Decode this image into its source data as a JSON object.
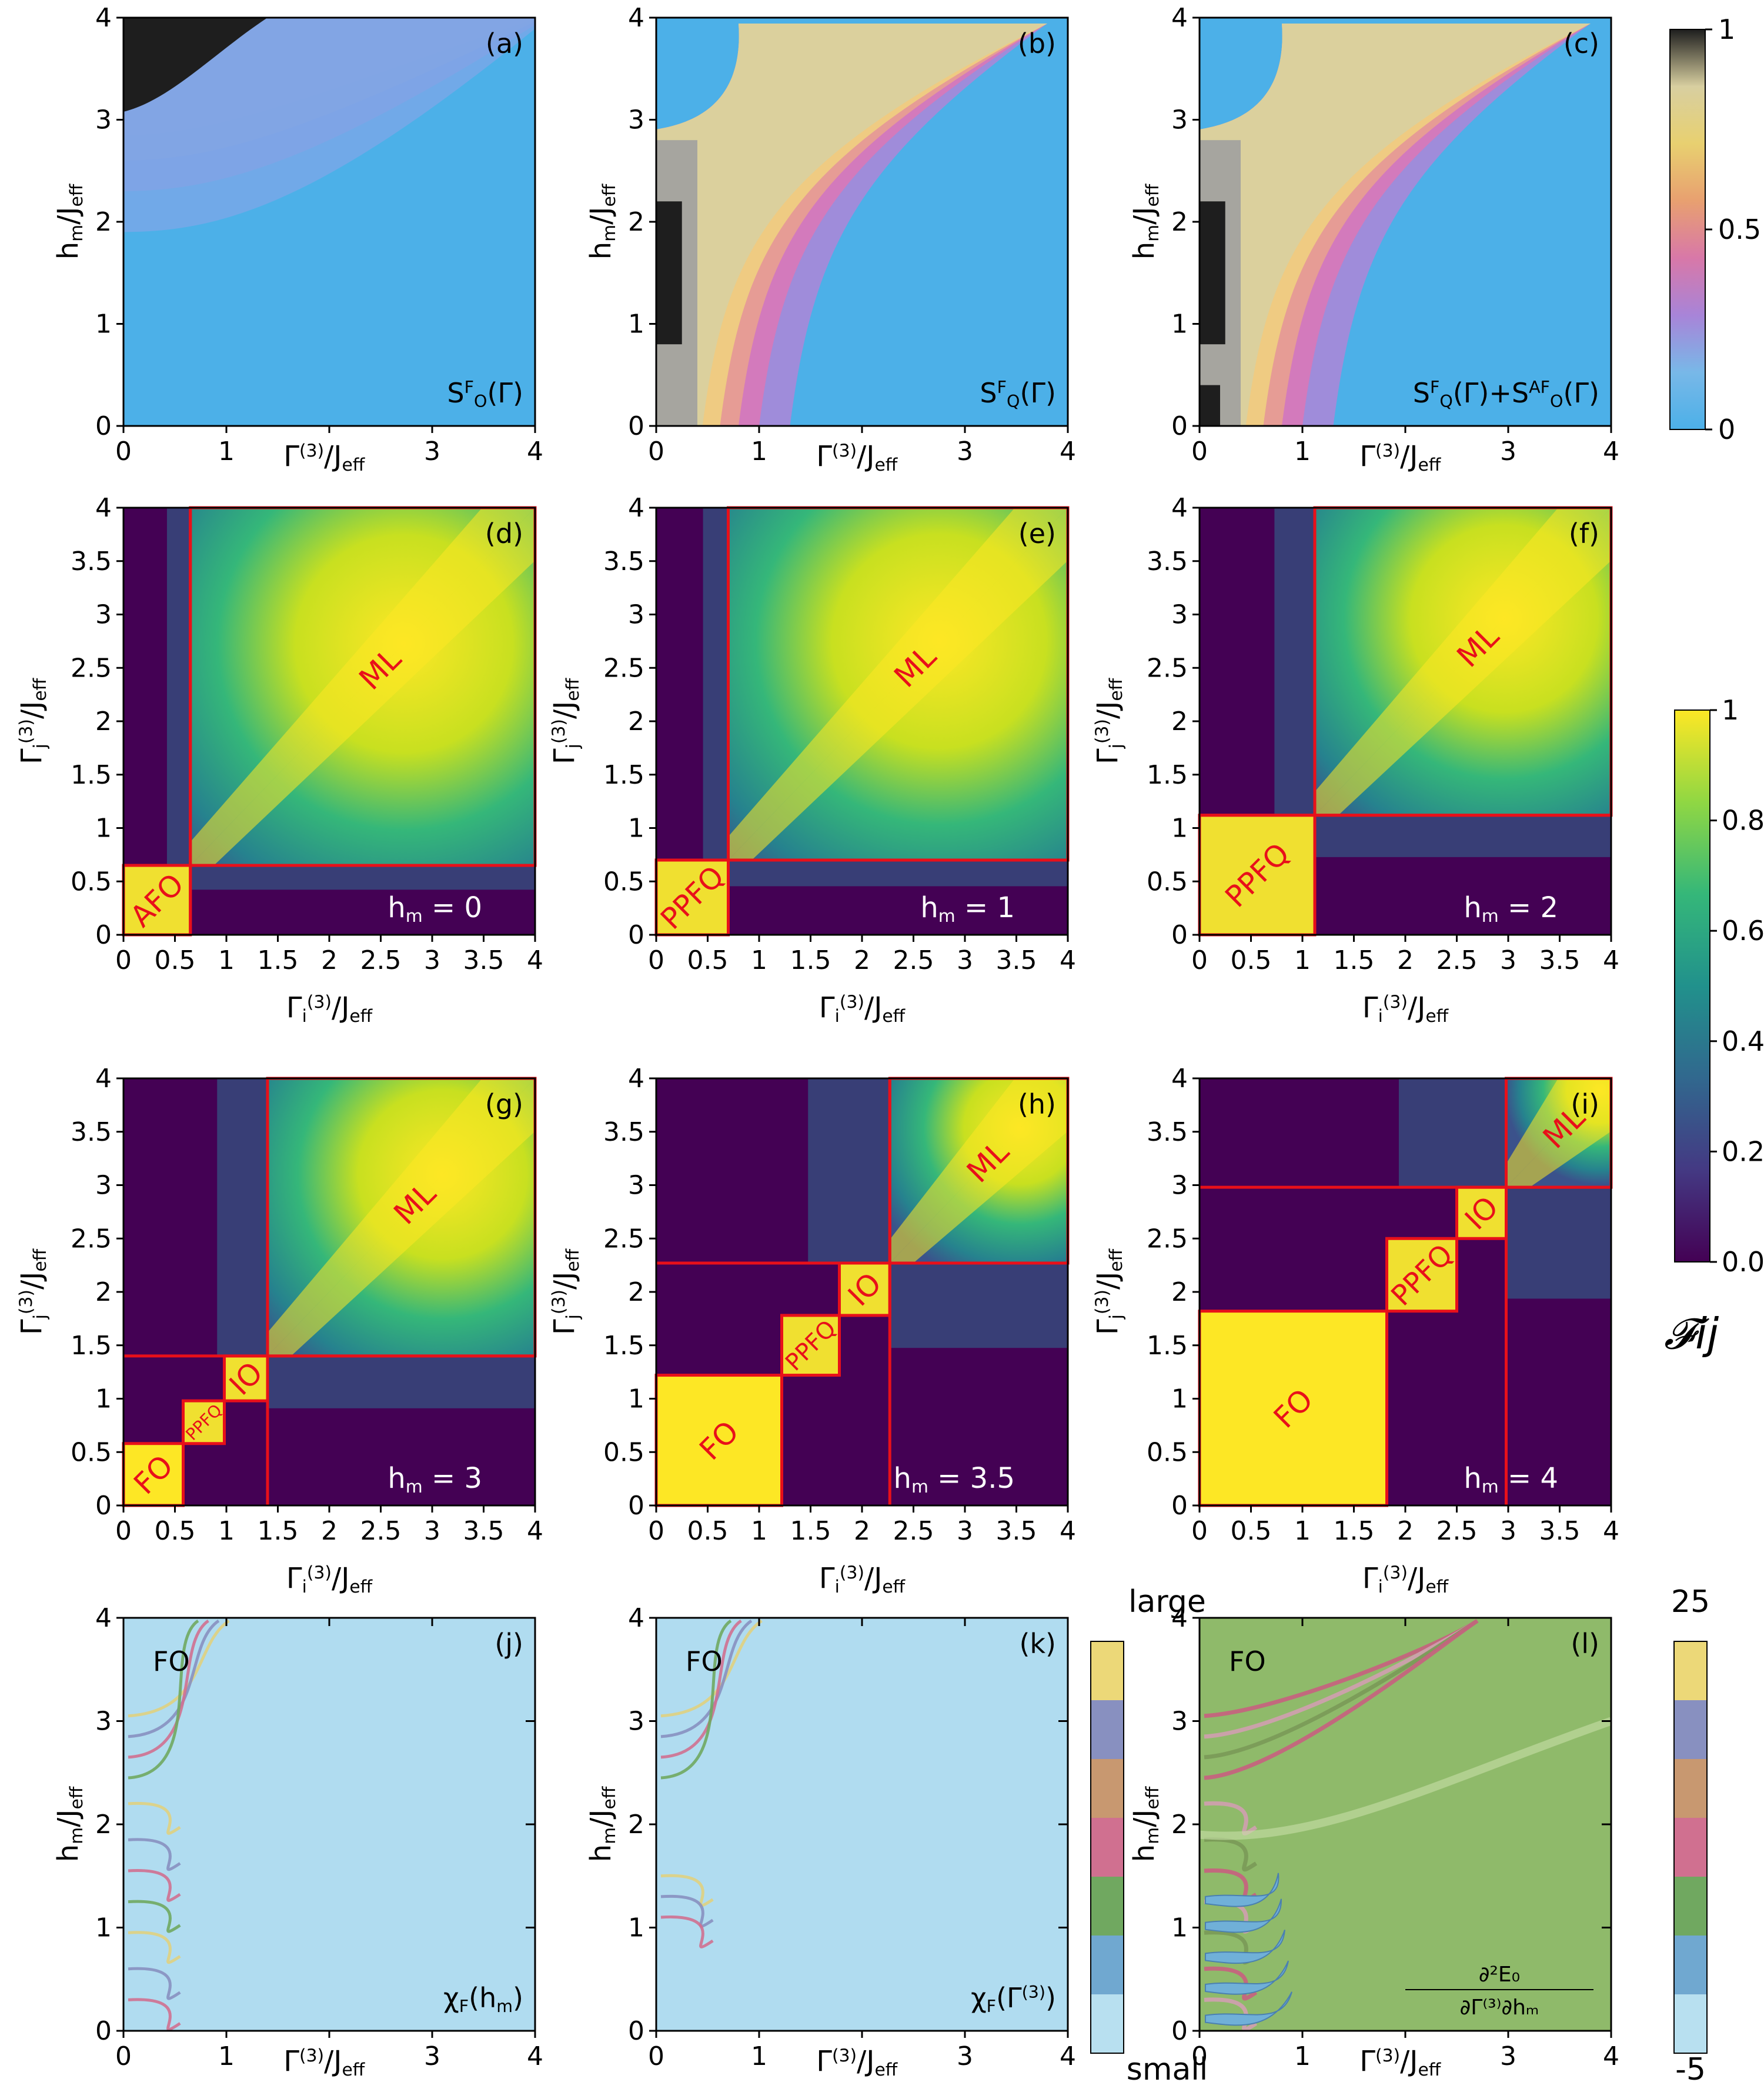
{
  "chart_data": [
    {
      "id": "a",
      "type": "heatmap",
      "panel_label": "(a)",
      "xlim": [
        0,
        4
      ],
      "ylim": [
        0,
        4
      ],
      "xticks": [
        "0",
        "1",
        "",
        "3",
        "4"
      ],
      "yticks": [
        "0",
        "1",
        "2",
        "3",
        "4"
      ],
      "xlabel_base": "Γ",
      "xlabel_sup": "(3)",
      "xlabel_mid": "/J",
      "xlabel_sub": "eff",
      "ylabel_base": "h",
      "ylabel_sub": "m",
      "ylabel_mid": "/J",
      "ylabel_sub2": "eff",
      "annotation": "S_O^F(Γ)",
      "annotation_parts": [
        {
          "t": "S"
        },
        {
          "t": "F",
          "sup": true
        },
        {
          "t": "O",
          "sub": true
        },
        {
          "t": "(Γ)"
        }
      ]
    },
    {
      "id": "b",
      "type": "heatmap",
      "panel_label": "(b)",
      "xlim": [
        0,
        4
      ],
      "ylim": [
        0,
        4
      ],
      "xticks": [
        "0",
        "1",
        "",
        "3",
        "4"
      ],
      "yticks": [
        "0",
        "1",
        "2",
        "3",
        "4"
      ],
      "xlabel_base": "Γ",
      "xlabel_sup": "(3)",
      "xlabel_mid": "/J",
      "xlabel_sub": "eff",
      "ylabel_base": "h",
      "ylabel_sub": "m",
      "ylabel_mid": "/J",
      "ylabel_sub2": "eff",
      "annotation": "S_Q^F(Γ)",
      "annotation_parts": [
        {
          "t": "S"
        },
        {
          "t": "F",
          "sup": true
        },
        {
          "t": "Q",
          "sub": true
        },
        {
          "t": "(Γ)"
        }
      ]
    },
    {
      "id": "c",
      "type": "heatmap",
      "panel_label": "(c)",
      "xlim": [
        0,
        4
      ],
      "ylim": [
        0,
        4
      ],
      "xticks": [
        "0",
        "1",
        "",
        "3",
        "4"
      ],
      "yticks": [
        "0",
        "1",
        "2",
        "3",
        "4"
      ],
      "xlabel_base": "Γ",
      "xlabel_sup": "(3)",
      "xlabel_mid": "/J",
      "xlabel_sub": "eff",
      "ylabel_base": "h",
      "ylabel_sub": "m",
      "ylabel_mid": "/J",
      "ylabel_sub2": "eff",
      "annotation": "S_Q^F(Γ)+S_O^AF(Γ)",
      "annotation_parts": [
        {
          "t": "S"
        },
        {
          "t": "F",
          "sup": true
        },
        {
          "t": "Q",
          "sub": true
        },
        {
          "t": "(Γ)+S"
        },
        {
          "t": "AF",
          "sup": true
        },
        {
          "t": "O",
          "sub": true
        },
        {
          "t": "(Γ)"
        }
      ]
    },
    {
      "id": "d",
      "type": "heatmap",
      "panel_label": "(d)",
      "hm_label": "h_m = 0",
      "hm_parts": [
        {
          "t": "h"
        },
        {
          "t": "m",
          "sub": true
        },
        {
          "t": " = 0"
        }
      ],
      "xlim": [
        0,
        4
      ],
      "ylim": [
        0,
        4
      ],
      "ticks": [
        "0",
        "0.5",
        "1",
        "1.5",
        "2",
        "2.5",
        "3",
        "3.5",
        "4"
      ],
      "xlabel_base": "Γ",
      "xlabel_sub": "i",
      "xlabel_sup": "(3)",
      "xlabel_mid": "/J",
      "xlabel_sub2": "eff",
      "ylabel_base": "Γ",
      "ylabel_sub": "j",
      "ylabel_sup": "(3)",
      "ylabel_mid": "/J",
      "ylabel_sub2": "eff",
      "regions": [
        {
          "label": "AFO",
          "x0": 0,
          "x1": 0.65
        },
        {
          "label": "ML",
          "x0": 0.65,
          "x1": 4
        }
      ]
    },
    {
      "id": "e",
      "type": "heatmap",
      "panel_label": "(e)",
      "hm_label": "h_m = 1",
      "hm_parts": [
        {
          "t": "h"
        },
        {
          "t": "m",
          "sub": true
        },
        {
          "t": " = 1"
        }
      ],
      "xlim": [
        0,
        4
      ],
      "ylim": [
        0,
        4
      ],
      "ticks": [
        "0",
        "0.5",
        "1",
        "1.5",
        "2",
        "2.5",
        "3",
        "3.5",
        "4"
      ],
      "xlabel_base": "Γ",
      "xlabel_sub": "i",
      "xlabel_sup": "(3)",
      "xlabel_mid": "/J",
      "xlabel_sub2": "eff",
      "ylabel_base": "Γ",
      "ylabel_sub": "j",
      "ylabel_sup": "(3)",
      "ylabel_mid": "/J",
      "ylabel_sub2": "eff",
      "regions": [
        {
          "label": "PPFQ",
          "x0": 0,
          "x1": 0.7
        },
        {
          "label": "ML",
          "x0": 0.7,
          "x1": 4
        }
      ]
    },
    {
      "id": "f",
      "type": "heatmap",
      "panel_label": "(f)",
      "hm_label": "h_m = 2",
      "hm_parts": [
        {
          "t": "h"
        },
        {
          "t": "m",
          "sub": true
        },
        {
          "t": " = 2"
        }
      ],
      "xlim": [
        0,
        4
      ],
      "ylim": [
        0,
        4
      ],
      "ticks": [
        "0",
        "0.5",
        "1",
        "1.5",
        "2",
        "2.5",
        "3",
        "3.5",
        "4"
      ],
      "xlabel_base": "Γ",
      "xlabel_sub": "i",
      "xlabel_sup": "(3)",
      "xlabel_mid": "/J",
      "xlabel_sub2": "eff",
      "ylabel_base": "Γ",
      "ylabel_sub": "j",
      "ylabel_sup": "(3)",
      "ylabel_mid": "/J",
      "ylabel_sub2": "eff",
      "regions": [
        {
          "label": "PPFQ",
          "x0": 0,
          "x1": 1.12
        },
        {
          "label": "ML",
          "x0": 1.12,
          "x1": 4
        }
      ]
    },
    {
      "id": "g",
      "type": "heatmap",
      "panel_label": "(g)",
      "hm_label": "h_m = 3",
      "hm_parts": [
        {
          "t": "h"
        },
        {
          "t": "m",
          "sub": true
        },
        {
          "t": " = 3"
        }
      ],
      "xlim": [
        0,
        4
      ],
      "ylim": [
        0,
        4
      ],
      "ticks": [
        "0",
        "0.5",
        "1",
        "1.5",
        "2",
        "2.5",
        "3",
        "3.5",
        "4"
      ],
      "xlabel_base": "Γ",
      "xlabel_sub": "i",
      "xlabel_sup": "(3)",
      "xlabel_mid": "/J",
      "xlabel_sub2": "eff",
      "ylabel_base": "Γ",
      "ylabel_sub": "j",
      "ylabel_sup": "(3)",
      "ylabel_mid": "/J",
      "ylabel_sub2": "eff",
      "regions": [
        {
          "label": "FO",
          "x0": 0,
          "x1": 0.58
        },
        {
          "label": "PPFQ",
          "x0": 0.58,
          "x1": 0.98
        },
        {
          "label": "IO",
          "x0": 0.98,
          "x1": 1.4
        },
        {
          "label": "ML",
          "x0": 1.4,
          "x1": 4
        }
      ]
    },
    {
      "id": "h",
      "type": "heatmap",
      "panel_label": "(h)",
      "hm_label": "h_m = 3.5",
      "hm_parts": [
        {
          "t": "h"
        },
        {
          "t": "m",
          "sub": true
        },
        {
          "t": " = 3.5"
        }
      ],
      "xlim": [
        0,
        4
      ],
      "ylim": [
        0,
        4
      ],
      "ticks": [
        "0",
        "0.5",
        "1",
        "1.5",
        "2",
        "2.5",
        "3",
        "3.5",
        "4"
      ],
      "xlabel_base": "Γ",
      "xlabel_sub": "i",
      "xlabel_sup": "(3)",
      "xlabel_mid": "/J",
      "xlabel_sub2": "eff",
      "ylabel_base": "Γ",
      "ylabel_sub": "j",
      "ylabel_sup": "(3)",
      "ylabel_mid": "/J",
      "ylabel_sub2": "eff",
      "regions": [
        {
          "label": "FO",
          "x0": 0,
          "x1": 1.22
        },
        {
          "label": "PPFQ",
          "x0": 1.22,
          "x1": 1.78
        },
        {
          "label": "IO",
          "x0": 1.78,
          "x1": 2.27
        },
        {
          "label": "ML",
          "x0": 2.27,
          "x1": 4
        }
      ]
    },
    {
      "id": "i",
      "type": "heatmap",
      "panel_label": "(i)",
      "hm_label": "h_m = 4",
      "hm_parts": [
        {
          "t": "h"
        },
        {
          "t": "m",
          "sub": true
        },
        {
          "t": " = 4"
        }
      ],
      "xlim": [
        0,
        4
      ],
      "ylim": [
        0,
        4
      ],
      "ticks": [
        "0",
        "0.5",
        "1",
        "1.5",
        "2",
        "2.5",
        "3",
        "3.5",
        "4"
      ],
      "xlabel_base": "Γ",
      "xlabel_sub": "i",
      "xlabel_sup": "(3)",
      "xlabel_mid": "/J",
      "xlabel_sub2": "eff",
      "ylabel_base": "Γ",
      "ylabel_sub": "j",
      "ylabel_sup": "(3)",
      "ylabel_mid": "/J",
      "ylabel_sub2": "eff",
      "regions": [
        {
          "label": "FO",
          "x0": 0,
          "x1": 1.82
        },
        {
          "label": "PPFQ",
          "x0": 1.82,
          "x1": 2.5
        },
        {
          "label": "IO",
          "x0": 2.5,
          "x1": 2.98
        },
        {
          "label": "ML",
          "x0": 2.98,
          "x1": 4
        }
      ]
    },
    {
      "id": "j",
      "type": "heatmap",
      "panel_label": "(j)",
      "corner_label": "FO",
      "xlim": [
        0,
        4
      ],
      "ylim": [
        0,
        4
      ],
      "xticks": [
        "0",
        "1",
        "",
        "3",
        "4"
      ],
      "yticks": [
        "0",
        "1",
        "2",
        "3",
        "4"
      ],
      "xlabel_base": "Γ",
      "xlabel_sup": "(3)",
      "xlabel_mid": "/J",
      "xlabel_sub": "eff",
      "ylabel_base": "h",
      "ylabel_sub": "m",
      "ylabel_mid": "/J",
      "ylabel_sub2": "eff",
      "annotation": "χ_F(h_m)",
      "annotation_parts": [
        {
          "t": "χ"
        },
        {
          "t": "F",
          "sub": true
        },
        {
          "t": "(h"
        },
        {
          "t": "m",
          "sub": true
        },
        {
          "t": ")"
        }
      ]
    },
    {
      "id": "k",
      "type": "heatmap",
      "panel_label": "(k)",
      "corner_label": "FO",
      "xlim": [
        0,
        4
      ],
      "ylim": [
        0,
        4
      ],
      "xticks": [
        "0",
        "1",
        "",
        "3",
        "4"
      ],
      "yticks": [
        "0",
        "1",
        "2",
        "3",
        "4"
      ],
      "xlabel_base": "Γ",
      "xlabel_sup": "(3)",
      "xlabel_mid": "/J",
      "xlabel_sub": "eff",
      "ylabel_base": "h",
      "ylabel_sub": "m",
      "ylabel_mid": "/J",
      "ylabel_sub2": "eff",
      "annotation": "χ_F(Γ^(3))",
      "annotation_parts": [
        {
          "t": "χ"
        },
        {
          "t": "F",
          "sub": true
        },
        {
          "t": "(Γ"
        },
        {
          "t": "(3)",
          "sup": true
        },
        {
          "t": ")"
        }
      ]
    },
    {
      "id": "l",
      "type": "heatmap",
      "panel_label": "(l)",
      "corner_label": "FO",
      "xlim": [
        0,
        4
      ],
      "ylim": [
        0,
        4
      ],
      "xticks": [
        "0",
        "1",
        "",
        "3",
        "4"
      ],
      "yticks": [
        "0",
        "1",
        "2",
        "3",
        "4"
      ],
      "xlabel_base": "Γ",
      "xlabel_sup": "(3)",
      "xlabel_mid": "/J",
      "xlabel_sub": "eff",
      "ylabel_base": "h",
      "ylabel_sub": "m",
      "ylabel_mid": "/J",
      "ylabel_sub2": "eff",
      "annotation_num": "∂²E₀",
      "annotation_den": "∂Γ⁽³⁾∂hₘ"
    }
  ],
  "colorbars": {
    "top": {
      "ticks": [
        "1",
        "0.5",
        "0"
      ],
      "colors": [
        "#1e1e1e",
        "#d8cfa0",
        "#e8d070",
        "#e8a070",
        "#d878a8",
        "#a884d8",
        "#78b8e8",
        "#4cb0e8"
      ]
    },
    "middle": {
      "ticks": [
        "1",
        "0.8",
        "0.6",
        "0.4",
        "0.2",
        "0.0"
      ],
      "label": "𝓕ij",
      "colors": [
        "#fde725",
        "#90d743",
        "#35b779",
        "#21918c",
        "#31688e",
        "#443983",
        "#440154"
      ]
    },
    "bottom_jk": {
      "top_label": "large",
      "bottom_label": "small",
      "colors": [
        "#ecd878",
        "#8890c0",
        "#c89870",
        "#d07090",
        "#70a860",
        "#70a8d0",
        "#b8e0f0"
      ]
    },
    "bottom_l": {
      "top_label": "25",
      "bottom_label": "-5",
      "colors": [
        "#ecd878",
        "#8890c0",
        "#c89870",
        "#d07090",
        "#70a860",
        "#70a8d0",
        "#b8e0f0"
      ]
    }
  }
}
